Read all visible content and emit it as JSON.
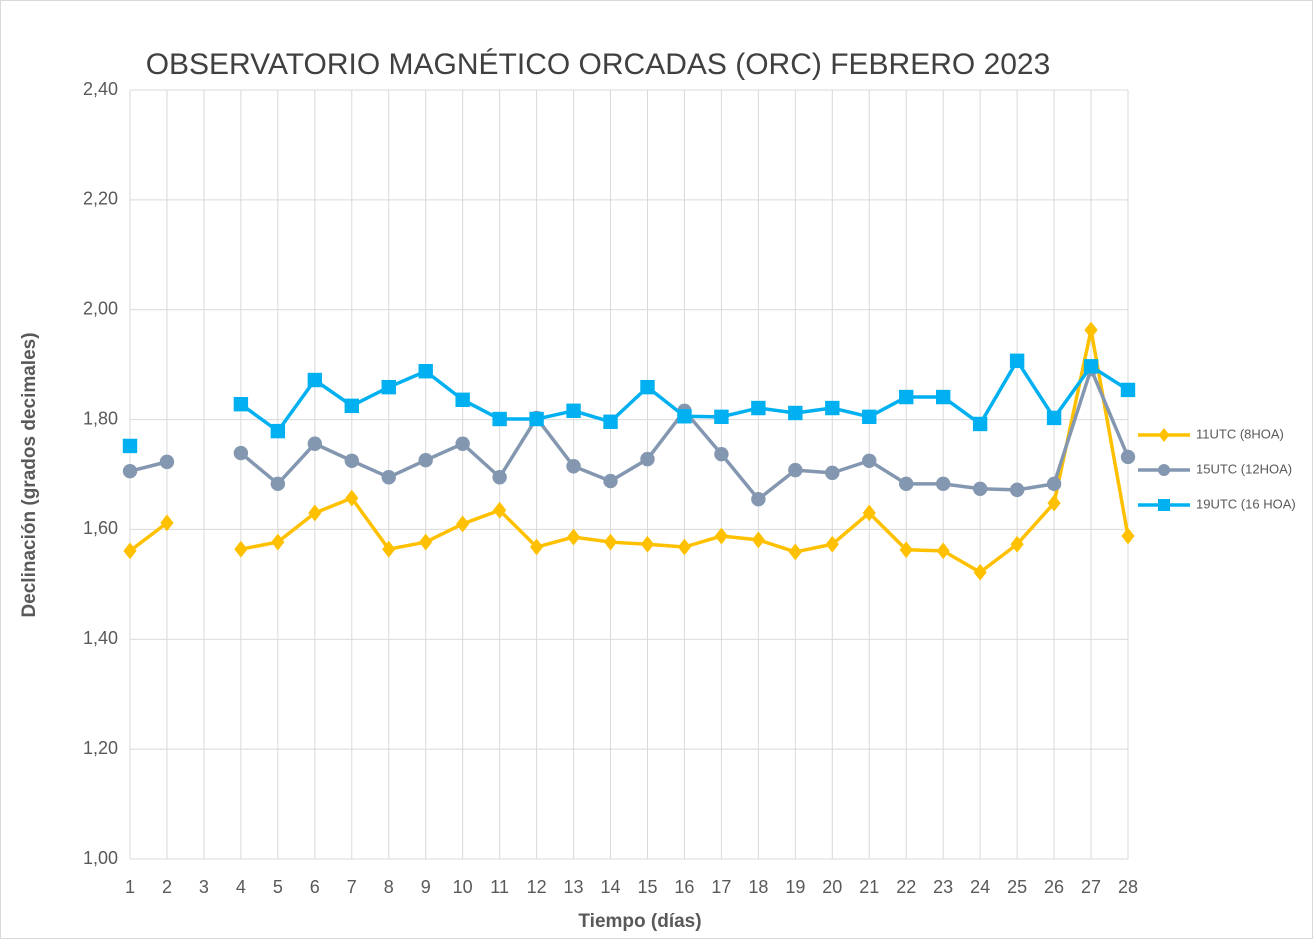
{
  "chart_data": {
    "type": "line",
    "title": "OBSERVATORIO MAGNÉTICO ORCADAS (ORC) FEBRERO 2023",
    "x_label": "Tiempo (días)",
    "y_label": "Declinación (grados decimales)",
    "x": [
      1,
      2,
      3,
      4,
      5,
      6,
      7,
      8,
      9,
      10,
      11,
      12,
      13,
      14,
      15,
      16,
      17,
      18,
      19,
      20,
      21,
      22,
      23,
      24,
      25,
      26,
      27,
      28
    ],
    "xlim": [
      1,
      28
    ],
    "xticks": [
      1,
      2,
      3,
      4,
      5,
      6,
      7,
      8,
      9,
      10,
      11,
      12,
      13,
      14,
      15,
      16,
      17,
      18,
      19,
      20,
      21,
      22,
      23,
      24,
      25,
      26,
      27,
      28
    ],
    "ylim": [
      1.0,
      2.4
    ],
    "yticks": [
      {
        "value": 1.0,
        "label": "1,00"
      },
      {
        "value": 1.2,
        "label": "1,20"
      },
      {
        "value": 1.4,
        "label": "1,40"
      },
      {
        "value": 1.6,
        "label": "1,60"
      },
      {
        "value": 1.8,
        "label": "1,80"
      },
      {
        "value": 2.0,
        "label": "2,00"
      },
      {
        "value": 2.2,
        "label": "2,20"
      },
      {
        "value": 2.4,
        "label": "2,40"
      }
    ],
    "grid": true,
    "legend": "right",
    "series": [
      {
        "name": "11UTC (8HOA)",
        "color": "#FFC000",
        "marker": "diamond",
        "values": [
          1.561,
          1.612,
          null,
          1.564,
          1.577,
          1.63,
          1.657,
          1.564,
          1.577,
          1.61,
          1.635,
          1.568,
          1.586,
          1.577,
          1.573,
          1.568,
          1.588,
          1.581,
          1.559,
          1.573,
          1.63,
          1.563,
          1.561,
          1.522,
          1.573,
          1.648,
          1.963,
          1.588
        ]
      },
      {
        "name": "15UTC (12HOA)",
        "color": "#8497B0",
        "marker": "circle",
        "values": [
          1.706,
          1.723,
          null,
          1.739,
          1.683,
          1.756,
          1.725,
          1.695,
          1.726,
          1.756,
          1.695,
          1.803,
          1.715,
          1.688,
          1.728,
          1.816,
          1.737,
          1.655,
          1.708,
          1.703,
          1.725,
          1.683,
          1.683,
          1.674,
          1.672,
          1.683,
          1.892,
          1.732
        ]
      },
      {
        "name": "19UTC (16 HOA)",
        "color": "#00B0F0",
        "marker": "square",
        "values": [
          1.752,
          null,
          null,
          1.828,
          1.779,
          1.872,
          1.825,
          1.859,
          1.888,
          1.836,
          1.801,
          1.801,
          1.816,
          1.796,
          1.859,
          1.806,
          1.805,
          1.821,
          1.812,
          1.821,
          1.805,
          1.841,
          1.841,
          1.792,
          1.907,
          1.803,
          1.897,
          1.854
        ]
      }
    ]
  }
}
